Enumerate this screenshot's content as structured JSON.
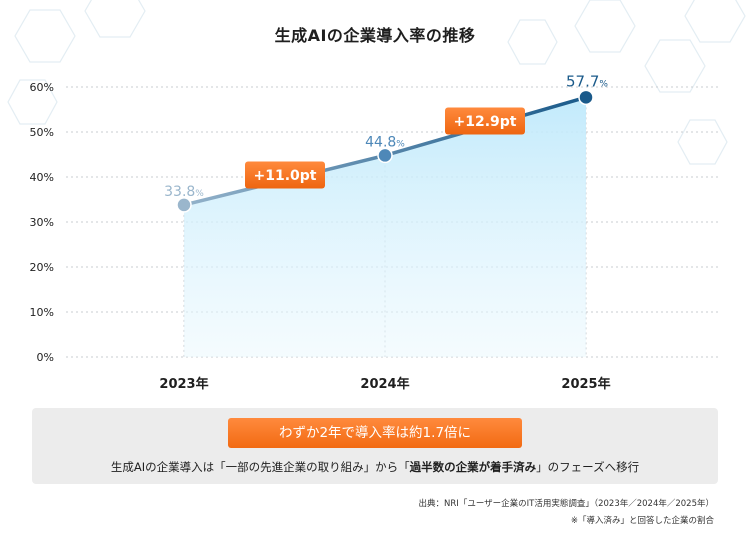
{
  "chart_data": {
    "type": "line",
    "title": "生成AIの企業導入率の推移",
    "categories": [
      "2023年",
      "2024年",
      "2025年"
    ],
    "series": [
      {
        "values": [
          33.8,
          44.8,
          57.7
        ]
      }
    ],
    "point_labels": [
      {
        "value": "33.8",
        "unit": "%"
      },
      {
        "value": "44.8",
        "unit": "%"
      },
      {
        "value": "57.7",
        "unit": "%"
      }
    ],
    "yticks": [
      "0%",
      "10%",
      "20%",
      "30%",
      "40%",
      "50%",
      "60%"
    ],
    "ylim": [
      0,
      60
    ],
    "grid": true,
    "annotations": [
      "+11.0pt",
      "+12.9pt"
    ],
    "colors": {
      "line_start": "#8fb0c8",
      "line_end": "#1a5a8a",
      "point_1": "#9ab6cc",
      "point_2": "#4e88b8",
      "point_3": "#1a5a8a",
      "callout": "#f27524",
      "area": "#cdeefc"
    }
  },
  "summary": {
    "badge": "わずか2年で導入率は約1.7倍に",
    "text_part1": "生成AIの企業導入は「一部の先進企業の取り組み」から「",
    "text_bold": "過半数の企業が着手済み",
    "text_part2": "」のフェーズへ移行"
  },
  "footer": {
    "source": "出典：NRI「ユーザー企業のIT活用実態調査」（2023年／2024年／2025年）",
    "note": "※「導入済み」と回答した企業の割合"
  }
}
